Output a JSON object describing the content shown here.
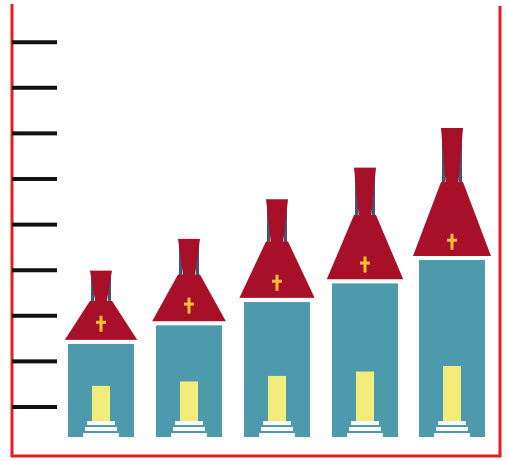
{
  "chart_data": {
    "type": "bar",
    "title": "",
    "xlabel": "",
    "ylabel": "",
    "categories": [
      "",
      "",
      "",
      "",
      ""
    ],
    "values": [
      2.0,
      2.4,
      2.9,
      3.3,
      3.8
    ],
    "ylim": [
      0,
      9
    ],
    "y_tick_count": 9,
    "grid": false,
    "legend": "none",
    "icon": "church-building-icon"
  },
  "colors": {
    "frame": "#e02020",
    "axis_tick": "#111111",
    "roof": "#a8102a",
    "body": "#4e9aad",
    "tower": "#3f5775",
    "window": "#f4ec7a",
    "steps": "#ffffff",
    "cross": "#f2c230",
    "band": "#ffffff"
  }
}
